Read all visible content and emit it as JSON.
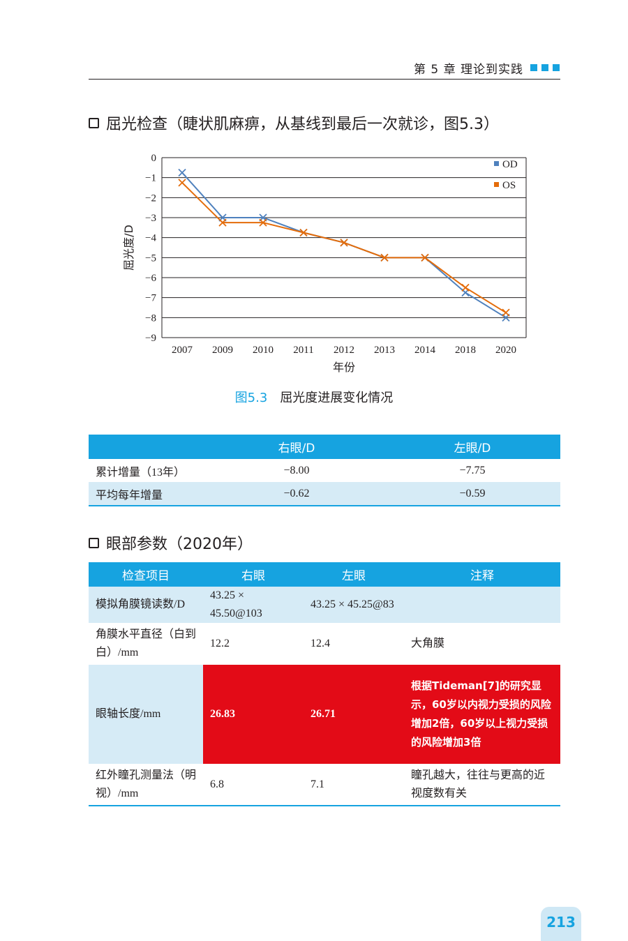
{
  "header": {
    "chapter": "第 5 章   理论到实践"
  },
  "section1": {
    "heading": "屈光检查（睫状肌麻痹，从基线到最后一次就诊，图5.3）"
  },
  "figure": {
    "number": "图5.3",
    "caption": "屈光度进展变化情况"
  },
  "chart_data": {
    "type": "line",
    "categories": [
      "2007",
      "2009",
      "2010",
      "2011",
      "2012",
      "2013",
      "2014",
      "2018",
      "2020"
    ],
    "series": [
      {
        "name": "OD",
        "color": "#4f81bd",
        "values": [
          -0.75,
          -3.0,
          -3.0,
          -3.75,
          -4.25,
          -5.0,
          -5.0,
          -6.75,
          -8.0
        ]
      },
      {
        "name": "OS",
        "color": "#e46c0a",
        "values": [
          -1.25,
          -3.25,
          -3.25,
          -3.75,
          -4.25,
          -5.0,
          -5.0,
          -6.5,
          -7.75
        ]
      }
    ],
    "xlabel": "年份",
    "ylabel": "屈光度/D",
    "ylim": [
      -9,
      0
    ],
    "yticks": [
      "0",
      "−1",
      "−2",
      "−3",
      "−4",
      "−5",
      "−6",
      "−7",
      "−8",
      "−9"
    ],
    "grid": true,
    "legend": "top-right"
  },
  "table1": {
    "headers": [
      "",
      "右眼/D",
      "左眼/D"
    ],
    "rows": [
      [
        "累计增量（13年）",
        "−8.00",
        "−7.75"
      ],
      [
        "平均每年增量",
        "−0.62",
        "−0.59"
      ]
    ]
  },
  "section2": {
    "heading": "眼部参数（2020年）"
  },
  "table2": {
    "headers": [
      "检查项目",
      "右眼",
      "左眼",
      "注释"
    ],
    "rows": [
      [
        "模拟角膜镜读数/D",
        "43.25 × 45.50@103",
        "43.25 × 45.25@83",
        ""
      ],
      [
        "角膜水平直径（白到白）/mm",
        "12.2",
        "12.4",
        "大角膜"
      ],
      [
        "眼轴长度/mm",
        "26.83",
        "26.71",
        "根据Tideman[7]的研究显示，60岁以内视力受损的风险增加2倍，60岁以上视力受损的风险增加3倍"
      ],
      [
        "红外瞳孔测量法（明视）/mm",
        "6.8",
        "7.1",
        "瞳孔越大，往往与更高的近视度数有关"
      ]
    ]
  },
  "page_number": "213",
  "colors": {
    "accent": "#16a3e0",
    "highlight": "#e30b17",
    "row_light": "#d6ebf6"
  }
}
